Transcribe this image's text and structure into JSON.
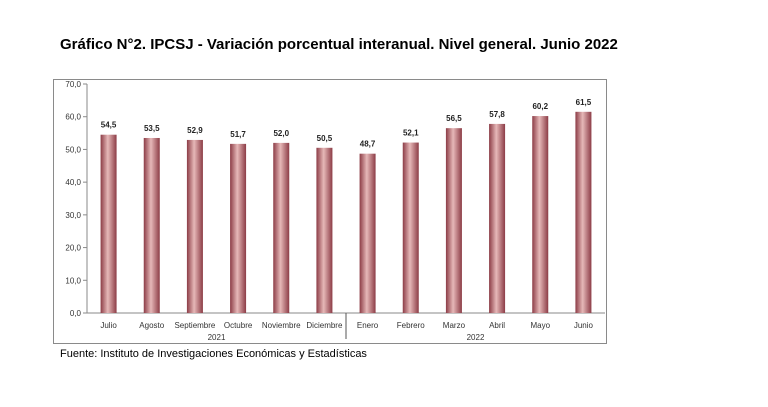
{
  "title": "Gráfico N°2. IPCSJ - Variación porcentual interanual. Nivel general. Junio 2022",
  "source": "Fuente: Instituto de Investigaciones Económicas y Estadísticas",
  "chart_data": {
    "type": "bar",
    "categories": [
      "Julio",
      "Agosto",
      "Septiembre",
      "Octubre",
      "Noviembre",
      "Diciembre",
      "Enero",
      "Febrero",
      "Marzo",
      "Abril",
      "Mayo",
      "Junio"
    ],
    "values": [
      54.5,
      53.5,
      52.9,
      51.7,
      52.0,
      50.5,
      48.7,
      52.1,
      56.5,
      57.8,
      60.2,
      61.5
    ],
    "value_labels": [
      "54,5",
      "53,5",
      "52,9",
      "51,7",
      "52,0",
      "50,5",
      "48,7",
      "52,1",
      "56,5",
      "57,8",
      "60,2",
      "61,5"
    ],
    "y_ticks": [
      "0,0",
      "10,0",
      "20,0",
      "30,0",
      "40,0",
      "50,0",
      "60,0",
      "70,0"
    ],
    "ylim": [
      0,
      70
    ],
    "groups": [
      {
        "label": "2021",
        "start": 0,
        "end": 5
      },
      {
        "label": "2022",
        "start": 6,
        "end": 11
      }
    ],
    "bar_color_light": "#e6b8b8",
    "bar_color_dark": "#8c3c46",
    "grid": false,
    "legend": "none"
  }
}
